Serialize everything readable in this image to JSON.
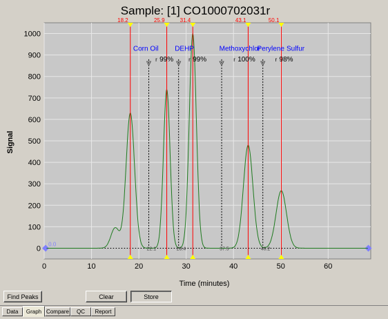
{
  "window": {
    "title": "Sample:  [1]  CO1000702031r"
  },
  "chart_data": {
    "type": "line",
    "title": "Sample:  [1]  CO1000702031r",
    "xlabel": "Time (minutes)",
    "ylabel": "Signal",
    "xlim": [
      0,
      69
    ],
    "ylim": [
      -50,
      1050
    ],
    "xticks": [
      0,
      10,
      20,
      30,
      40,
      50,
      60
    ],
    "yticks": [
      0,
      100,
      200,
      300,
      400,
      500,
      600,
      700,
      800,
      900,
      1000
    ],
    "grid": true,
    "baseline_label": "0.0",
    "retention_markers": [
      {
        "time": 18.2,
        "label": "18.2"
      },
      {
        "time": 25.9,
        "label": "25.9"
      },
      {
        "time": 31.4,
        "label": "31.4"
      },
      {
        "time": 43.1,
        "label": "43.1"
      },
      {
        "time": 50.1,
        "label": "50.1"
      }
    ],
    "cut_points": [
      {
        "time": 22.1,
        "label": "22.1"
      },
      {
        "time": 28.4,
        "label": "28.4"
      },
      {
        "time": 37.5,
        "label": "37.5"
      },
      {
        "time": 46.2,
        "label": "46.2"
      }
    ],
    "fractions": [
      {
        "name": "Corn Oil",
        "name_x": 18.8,
        "recovery": "99%",
        "recovery_x": 23.5
      },
      {
        "name": "DEHP",
        "name_x": 27.6,
        "recovery": "99%",
        "recovery_x": 30.5
      },
      {
        "name": "Methoxychlor",
        "name_x": 37.0,
        "recovery": "100%",
        "recovery_x": 40.0
      },
      {
        "name": "Perylene",
        "name_x": 45.0,
        "recovery": "98%",
        "recovery_x": 48.8
      },
      {
        "name": "Sulfur",
        "name_x": 51.2,
        "recovery": "",
        "recovery_x": 0
      }
    ],
    "peaks": [
      {
        "center": 15.0,
        "height": 95,
        "width": 0.9
      },
      {
        "center": 18.2,
        "height": 630,
        "width": 0.9
      },
      {
        "center": 25.9,
        "height": 740,
        "width": 0.7
      },
      {
        "center": 31.4,
        "height": 1000,
        "width": 0.75
      },
      {
        "center": 43.1,
        "height": 480,
        "width": 1.0
      },
      {
        "center": 50.1,
        "height": 268,
        "width": 1.1
      }
    ],
    "series": [
      {
        "color": "#1e7a1e"
      }
    ]
  },
  "colors": {
    "plot_bg": "#c8c8c8",
    "grid": "#e8e8e8",
    "signal": "#1e7a1e",
    "retention_line": "#ff0000",
    "cut_line": "#000000",
    "fraction_label": "#0000ff",
    "marker": "#ffff00",
    "end_marker": "#8080ff"
  },
  "buttons": {
    "find_peaks": "Find Peaks",
    "clear": "Clear",
    "store": "Store"
  },
  "tabs": [
    "Data",
    "Graph",
    "Compare",
    "QC",
    "Report"
  ]
}
